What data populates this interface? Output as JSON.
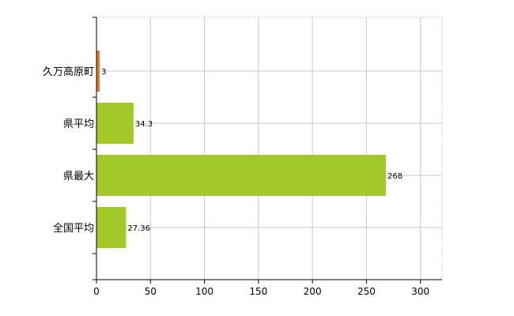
{
  "chart_data": {
    "type": "bar",
    "orientation": "horizontal",
    "categories": [
      "久万高原町",
      "県平均",
      "県最大",
      "全国平均"
    ],
    "values": [
      3,
      34.3,
      268,
      27.36
    ],
    "value_labels": [
      "3",
      "34.3",
      "268",
      "27.36"
    ],
    "bar_colors": [
      "#e07b2e",
      "#a3c929",
      "#a3c929",
      "#a3c929"
    ],
    "xlim": [
      0,
      320
    ],
    "x_ticks": [
      0,
      50,
      100,
      150,
      200,
      250,
      300
    ],
    "x_tick_labels": [
      "0",
      "50",
      "100",
      "150",
      "200",
      "250",
      "300"
    ],
    "grid": true,
    "title": "",
    "xlabel": "",
    "ylabel": ""
  }
}
